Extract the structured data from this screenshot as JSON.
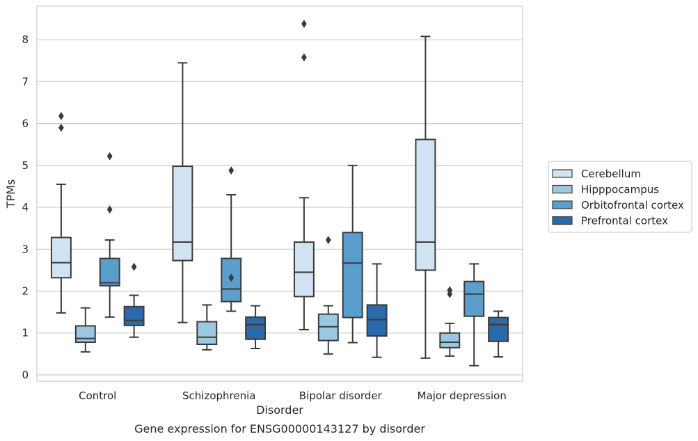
{
  "caption": "Gene expression for ENSG00000143127 by disorder",
  "chart_data": {
    "type": "boxplot",
    "xlabel": "Disorder",
    "ylabel": "TPMs",
    "ylim": [
      -0.15,
      8.8
    ],
    "yticks": [
      0,
      1,
      2,
      3,
      4,
      5,
      6,
      7,
      8
    ],
    "grid": "horizontal",
    "legend_position": "right",
    "categories": [
      "Control",
      "Schizophrenia",
      "Bipolar disorder",
      "Major depression"
    ],
    "series": [
      {
        "name": "Cerebellum",
        "color": "#d1e2f2",
        "boxes": [
          {
            "whislo": 1.48,
            "q1": 2.32,
            "med": 2.68,
            "q3": 3.28,
            "whishi": 4.55,
            "fliers": [
              5.9,
              6.18
            ]
          },
          {
            "whislo": 1.25,
            "q1": 2.73,
            "med": 3.17,
            "q3": 4.98,
            "whishi": 7.45,
            "fliers": []
          },
          {
            "whislo": 1.08,
            "q1": 1.87,
            "med": 2.45,
            "q3": 3.17,
            "whishi": 4.23,
            "fliers": [
              7.58,
              8.38
            ]
          },
          {
            "whislo": 0.4,
            "q1": 2.5,
            "med": 3.17,
            "q3": 5.62,
            "whishi": 8.08,
            "fliers": []
          }
        ]
      },
      {
        "name": "Hipppocampus",
        "color": "#9ac8e0",
        "boxes": [
          {
            "whislo": 0.55,
            "q1": 0.78,
            "med": 0.87,
            "q3": 1.17,
            "whishi": 1.6,
            "fliers": []
          },
          {
            "whislo": 0.6,
            "q1": 0.73,
            "med": 0.9,
            "q3": 1.27,
            "whishi": 1.67,
            "fliers": []
          },
          {
            "whislo": 0.5,
            "q1": 0.82,
            "med": 1.15,
            "q3": 1.45,
            "whishi": 1.65,
            "fliers": [
              3.22
            ]
          },
          {
            "whislo": 0.45,
            "q1": 0.65,
            "med": 0.78,
            "q3": 1.0,
            "whishi": 1.23,
            "fliers": [
              1.93,
              2.02
            ]
          }
        ]
      },
      {
        "name": "Orbitofrontal cortex",
        "color": "#5a9fcb",
        "boxes": [
          {
            "whislo": 1.38,
            "q1": 2.13,
            "med": 2.2,
            "q3": 2.78,
            "whishi": 3.22,
            "fliers": [
              3.95,
              5.22
            ]
          },
          {
            "whislo": 1.52,
            "q1": 1.75,
            "med": 2.05,
            "q3": 2.78,
            "whishi": 4.3,
            "fliers": [
              2.32,
              4.88
            ]
          },
          {
            "whislo": 0.77,
            "q1": 1.37,
            "med": 2.67,
            "q3": 3.4,
            "whishi": 5.0,
            "fliers": []
          },
          {
            "whislo": 0.22,
            "q1": 1.4,
            "med": 1.93,
            "q3": 2.23,
            "whishi": 2.65,
            "fliers": []
          }
        ]
      },
      {
        "name": "Prefrontal cortex",
        "color": "#2b6aa8",
        "boxes": [
          {
            "whislo": 0.9,
            "q1": 1.18,
            "med": 1.3,
            "q3": 1.63,
            "whishi": 1.9,
            "fliers": [
              2.58
            ]
          },
          {
            "whislo": 0.63,
            "q1": 0.85,
            "med": 1.2,
            "q3": 1.38,
            "whishi": 1.65,
            "fliers": []
          },
          {
            "whislo": 0.42,
            "q1": 0.93,
            "med": 1.32,
            "q3": 1.67,
            "whishi": 2.65,
            "fliers": []
          },
          {
            "whislo": 0.43,
            "q1": 0.8,
            "med": 1.2,
            "q3": 1.37,
            "whishi": 1.52,
            "fliers": []
          }
        ]
      }
    ]
  }
}
